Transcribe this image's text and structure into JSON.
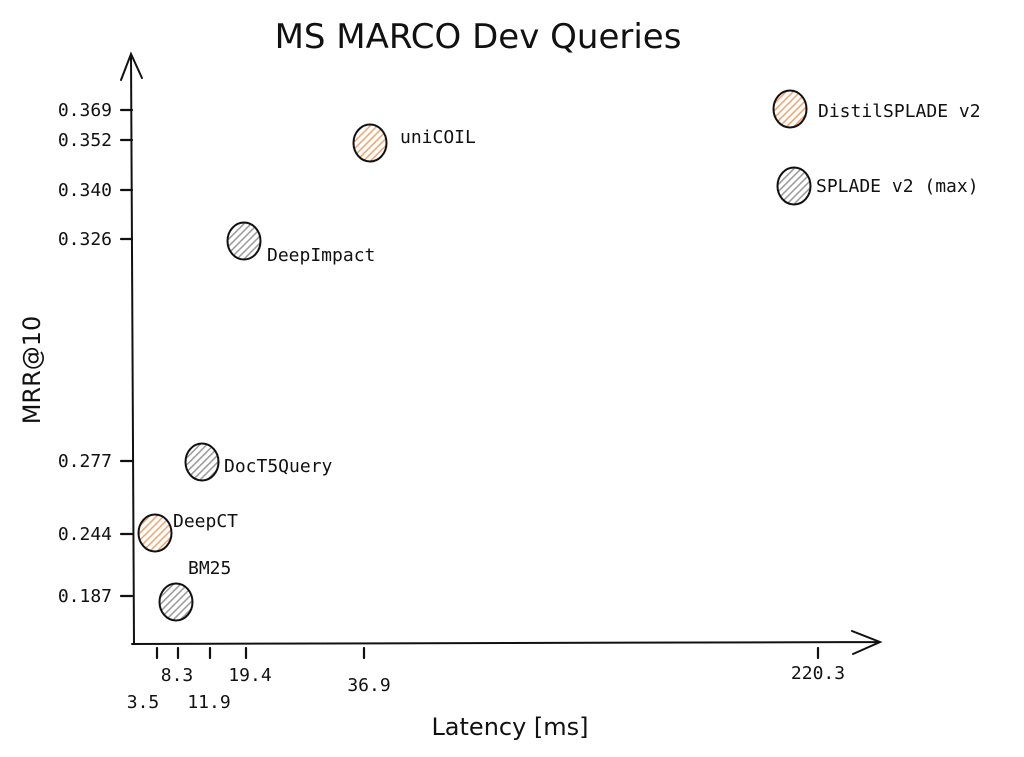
{
  "chart_data": {
    "type": "scatter",
    "title": "MS MARCO Dev Queries",
    "xlabel": "Latency [ms]",
    "ylabel": "MRR@10",
    "x_ticks": [
      "3.5",
      "8.3",
      "11.9",
      "19.4",
      "36.9",
      "220.3"
    ],
    "y_ticks": [
      "0.187",
      "0.244",
      "0.277",
      "0.326",
      "0.340",
      "0.352",
      "0.369"
    ],
    "grid": false,
    "colors": {
      "orange": "#f3a36d",
      "gray": "#9a9a9a"
    },
    "points": [
      {
        "label": "BM25",
        "x": "8.3",
        "y": 0.187,
        "color": "gray"
      },
      {
        "label": "DeepCT",
        "x": "3.5",
        "y": 0.244,
        "color": "orange"
      },
      {
        "label": "DocT5Query",
        "x": "11.9",
        "y": 0.277,
        "color": "gray"
      },
      {
        "label": "DeepImpact",
        "x": "19.4",
        "y": 0.326,
        "color": "gray"
      },
      {
        "label": "uniCOIL",
        "x": "36.9",
        "y": 0.352,
        "color": "orange"
      },
      {
        "label": "SPLADE v2 (max)",
        "x": "220.3",
        "y": 0.34,
        "color": "gray"
      },
      {
        "label": "DistilSPLADE v2",
        "x": "220.3",
        "y": 0.369,
        "color": "orange"
      }
    ]
  }
}
